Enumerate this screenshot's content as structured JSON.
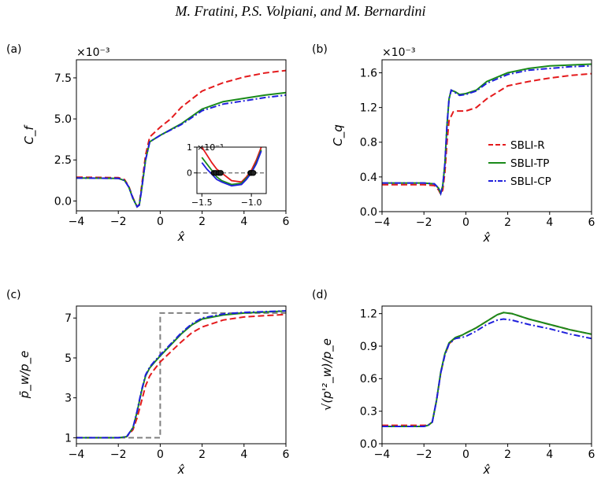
{
  "header": {
    "authors": "M. Fratini, P.S. Volpiani, and M. Bernardini"
  },
  "colors": {
    "SBLI-R": "#e41a1c",
    "SBLI-TP": "#1a8a1a",
    "SBLI-CP": "#1f1fdc",
    "reference": "#808080"
  },
  "legend": {
    "entries": [
      "SBLI-R",
      "SBLI-TP",
      "SBLI-CP"
    ],
    "placement": "right"
  },
  "chart_data": [
    {
      "panel": "(a)",
      "type": "line",
      "xlabel": "x̂",
      "ylabel": "C_f",
      "exponent": "×10⁻³",
      "xlim": [
        -4,
        6
      ],
      "ylim": [
        -0.6,
        8.6
      ],
      "xticks": [
        "−4",
        "−2",
        "0",
        "2",
        "4",
        "6"
      ],
      "xtick_values": [
        -4,
        -2,
        0,
        2,
        4,
        6
      ],
      "yticks": [
        "0.0",
        "2.5",
        "5.0",
        "7.5"
      ],
      "ytick_values": [
        0,
        2.5,
        5,
        7.5
      ],
      "series": [
        {
          "name": "SBLI-R",
          "dash": "dash",
          "x": [
            -4,
            -2,
            -1.7,
            -1.5,
            -1.3,
            -1.1,
            -1.0,
            -0.9,
            -0.7,
            -0.5,
            0,
            0.5,
            1,
            2,
            3,
            4,
            5,
            6
          ],
          "y": [
            1.45,
            1.42,
            1.3,
            0.9,
            0.2,
            -0.35,
            -0.2,
            0.8,
            2.8,
            3.9,
            4.5,
            5.0,
            5.7,
            6.7,
            7.2,
            7.55,
            7.8,
            7.95
          ]
        },
        {
          "name": "SBLI-TP",
          "dash": "solid",
          "x": [
            -4,
            -2,
            -1.7,
            -1.5,
            -1.3,
            -1.1,
            -1.0,
            -0.9,
            -0.7,
            -0.5,
            0,
            1,
            2,
            3,
            4,
            5,
            6
          ],
          "y": [
            1.4,
            1.38,
            1.25,
            0.85,
            0.15,
            -0.35,
            -0.25,
            0.6,
            2.5,
            3.6,
            4.0,
            4.7,
            5.6,
            6.05,
            6.25,
            6.45,
            6.6
          ]
        },
        {
          "name": "SBLI-CP",
          "dash": "dashdot",
          "x": [
            -4,
            -2,
            -1.7,
            -1.5,
            -1.3,
            -1.1,
            -1.0,
            -0.9,
            -0.7,
            -0.5,
            0,
            1,
            2,
            3,
            4,
            5,
            6
          ],
          "y": [
            1.4,
            1.38,
            1.25,
            0.85,
            0.15,
            -0.35,
            -0.25,
            0.6,
            2.5,
            3.6,
            4.0,
            4.65,
            5.5,
            5.9,
            6.1,
            6.3,
            6.45
          ]
        }
      ],
      "inset": {
        "xlim": [
          -1.55,
          -0.85
        ],
        "ylim": [
          -0.8,
          1.0
        ],
        "xticks": [
          "−1.5",
          "−1.0"
        ],
        "xtick_values": [
          -1.5,
          -1.0
        ],
        "yticks": [
          "0",
          "1"
        ],
        "ytick_values": [
          0,
          1
        ],
        "exponent": "×10⁻³",
        "series": [
          {
            "name": "SBLI-R",
            "x": [
              -1.5,
              -1.45,
              -1.4,
              -1.35,
              -1.3,
              -1.2,
              -1.1,
              -1.05,
              -1.0,
              -0.95,
              -0.9
            ],
            "y": [
              1.0,
              0.7,
              0.4,
              0.15,
              0.0,
              -0.3,
              -0.35,
              -0.15,
              0.1,
              0.5,
              1.0
            ]
          },
          {
            "name": "SBLI-TP",
            "x": [
              -1.5,
              -1.45,
              -1.4,
              -1.35,
              -1.3,
              -1.2,
              -1.1,
              -1.05,
              -1.0,
              -0.95,
              -0.9
            ],
            "y": [
              0.6,
              0.35,
              0.1,
              -0.15,
              -0.3,
              -0.45,
              -0.4,
              -0.2,
              0.0,
              0.4,
              0.9
            ]
          },
          {
            "name": "SBLI-CP",
            "x": [
              -1.5,
              -1.45,
              -1.4,
              -1.35,
              -1.3,
              -1.2,
              -1.1,
              -1.05,
              -1.0,
              -0.95,
              -0.9
            ],
            "y": [
              0.4,
              0.15,
              -0.05,
              -0.25,
              -0.35,
              -0.5,
              -0.45,
              -0.25,
              0.0,
              0.35,
              0.85
            ]
          }
        ],
        "markers_x": [
          -1.38,
          -1.36,
          -1.33,
          -1.31,
          -1.01,
          -1.0,
          -0.98
        ]
      }
    },
    {
      "panel": "(b)",
      "type": "line",
      "xlabel": "x̂",
      "ylabel": "C_q",
      "exponent": "×10⁻³",
      "xlim": [
        -4,
        6
      ],
      "ylim": [
        0,
        1.75
      ],
      "xticks": [
        "−4",
        "−2",
        "0",
        "2",
        "4",
        "6"
      ],
      "xtick_values": [
        -4,
        -2,
        0,
        2,
        4,
        6
      ],
      "yticks": [
        "0.0",
        "0.4",
        "0.8",
        "1.2",
        "1.6"
      ],
      "ytick_values": [
        0,
        0.4,
        0.8,
        1.2,
        1.6
      ],
      "series": [
        {
          "name": "SBLI-R",
          "dash": "dash",
          "x": [
            -4,
            -2,
            -1.5,
            -1.3,
            -1.2,
            -1.1,
            -1.0,
            -0.9,
            -0.8,
            -0.6,
            -0.4,
            0,
            0.5,
            1,
            2,
            3,
            4,
            5,
            6
          ],
          "y": [
            0.31,
            0.31,
            0.3,
            0.25,
            0.2,
            0.25,
            0.45,
            0.8,
            1.05,
            1.15,
            1.16,
            1.16,
            1.2,
            1.3,
            1.45,
            1.5,
            1.54,
            1.57,
            1.59
          ]
        },
        {
          "name": "SBLI-TP",
          "dash": "solid",
          "x": [
            -4,
            -2,
            -1.5,
            -1.3,
            -1.2,
            -1.1,
            -1.0,
            -0.9,
            -0.8,
            -0.7,
            -0.5,
            -0.3,
            0,
            0.5,
            1,
            2,
            3,
            4,
            5,
            6
          ],
          "y": [
            0.33,
            0.33,
            0.32,
            0.27,
            0.21,
            0.3,
            0.55,
            1.0,
            1.3,
            1.4,
            1.38,
            1.35,
            1.36,
            1.4,
            1.5,
            1.6,
            1.65,
            1.68,
            1.69,
            1.7
          ]
        },
        {
          "name": "SBLI-CP",
          "dash": "dashdot",
          "x": [
            -4,
            -2,
            -1.5,
            -1.3,
            -1.2,
            -1.1,
            -1.0,
            -0.9,
            -0.8,
            -0.7,
            -0.5,
            -0.3,
            0,
            0.5,
            1,
            2,
            3,
            4,
            5,
            6
          ],
          "y": [
            0.33,
            0.33,
            0.32,
            0.27,
            0.21,
            0.3,
            0.55,
            1.0,
            1.3,
            1.4,
            1.37,
            1.34,
            1.35,
            1.39,
            1.48,
            1.58,
            1.63,
            1.65,
            1.67,
            1.68
          ]
        }
      ]
    },
    {
      "panel": "(c)",
      "type": "line",
      "xlabel": "x̂",
      "ylabel": "p̄_w/p_e",
      "xlim": [
        -4,
        6
      ],
      "ylim": [
        0.7,
        7.6
      ],
      "xticks": [
        "−4",
        "−2",
        "0",
        "2",
        "4",
        "6"
      ],
      "xtick_values": [
        -4,
        -2,
        0,
        2,
        4,
        6
      ],
      "yticks": [
        "1",
        "3",
        "5",
        "7"
      ],
      "ytick_values": [
        1,
        3,
        5,
        7
      ],
      "reference": {
        "x": [
          -4,
          0,
          0,
          6
        ],
        "y": [
          1.0,
          1.0,
          7.25,
          7.25
        ]
      },
      "series": [
        {
          "name": "SBLI-R",
          "dash": "dash",
          "x": [
            -4,
            -2,
            -1.6,
            -1.3,
            -1.1,
            -0.9,
            -0.7,
            -0.5,
            -0.3,
            0,
            0.5,
            1,
            1.5,
            2,
            3,
            4,
            5,
            6
          ],
          "y": [
            1.0,
            1.0,
            1.05,
            1.4,
            2.0,
            2.8,
            3.6,
            4.1,
            4.4,
            4.8,
            5.3,
            5.8,
            6.25,
            6.55,
            6.9,
            7.05,
            7.12,
            7.18
          ]
        },
        {
          "name": "SBLI-TP",
          "dash": "solid",
          "x": [
            -4,
            -2,
            -1.6,
            -1.3,
            -1.1,
            -0.9,
            -0.7,
            -0.5,
            -0.3,
            0,
            0.5,
            1,
            1.5,
            2,
            3,
            4,
            5,
            6
          ],
          "y": [
            1.0,
            1.0,
            1.05,
            1.5,
            2.3,
            3.3,
            4.1,
            4.5,
            4.75,
            5.1,
            5.65,
            6.2,
            6.65,
            6.95,
            7.15,
            7.25,
            7.3,
            7.35
          ]
        },
        {
          "name": "SBLI-CP",
          "dash": "dashdot",
          "x": [
            -4,
            -2,
            -1.6,
            -1.3,
            -1.1,
            -0.9,
            -0.7,
            -0.5,
            -0.3,
            0,
            0.5,
            1,
            1.5,
            2,
            3,
            4,
            5,
            6
          ],
          "y": [
            1.0,
            1.0,
            1.05,
            1.5,
            2.35,
            3.35,
            4.15,
            4.55,
            4.8,
            5.15,
            5.7,
            6.25,
            6.7,
            7.0,
            7.2,
            7.28,
            7.32,
            7.36
          ]
        }
      ]
    },
    {
      "panel": "(d)",
      "type": "line",
      "xlabel": "x̂",
      "ylabel": "√(p'²_w)/p_e",
      "xlim": [
        -4,
        6
      ],
      "ylim": [
        0,
        1.27
      ],
      "xticks": [
        "−4",
        "−2",
        "0",
        "2",
        "4",
        "6"
      ],
      "xtick_values": [
        -4,
        -2,
        0,
        2,
        4,
        6
      ],
      "yticks": [
        "0.0",
        "0.3",
        "0.6",
        "0.9",
        "1.2"
      ],
      "ytick_values": [
        0,
        0.3,
        0.6,
        0.9,
        1.2
      ],
      "series": [
        {
          "name": "SBLI-R",
          "dash": "dash",
          "x": [
            -4,
            -2,
            -1.8,
            -1.6,
            -1.4,
            -1.2,
            -1.0,
            -0.8,
            -0.5,
            -0.2,
            0,
            0.5,
            1,
            1.5,
            1.8,
            2.2,
            3,
            4,
            5,
            6
          ],
          "y": [
            0.17,
            0.17,
            0.17,
            0.2,
            0.4,
            0.65,
            0.82,
            0.92,
            0.98,
            1.0,
            1.02,
            1.07,
            1.13,
            1.19,
            1.21,
            1.2,
            1.15,
            1.1,
            1.05,
            1.01
          ]
        },
        {
          "name": "SBLI-TP",
          "dash": "solid",
          "x": [
            -4,
            -2,
            -1.8,
            -1.6,
            -1.4,
            -1.2,
            -1.0,
            -0.8,
            -0.5,
            -0.2,
            0,
            0.5,
            1,
            1.5,
            1.8,
            2.2,
            3,
            4,
            5,
            6
          ],
          "y": [
            0.16,
            0.16,
            0.17,
            0.2,
            0.4,
            0.66,
            0.83,
            0.93,
            0.98,
            1.0,
            1.02,
            1.07,
            1.13,
            1.19,
            1.21,
            1.2,
            1.15,
            1.1,
            1.05,
            1.01
          ]
        },
        {
          "name": "SBLI-CP",
          "dash": "dashdot",
          "x": [
            -4,
            -2,
            -1.8,
            -1.6,
            -1.4,
            -1.2,
            -1.0,
            -0.8,
            -0.5,
            -0.2,
            0,
            0.5,
            1,
            1.5,
            1.8,
            2.2,
            3,
            4,
            5,
            6
          ],
          "y": [
            0.16,
            0.16,
            0.17,
            0.2,
            0.4,
            0.65,
            0.82,
            0.92,
            0.97,
            0.98,
            0.99,
            1.04,
            1.1,
            1.14,
            1.15,
            1.14,
            1.1,
            1.06,
            1.01,
            0.97
          ]
        }
      ]
    }
  ]
}
